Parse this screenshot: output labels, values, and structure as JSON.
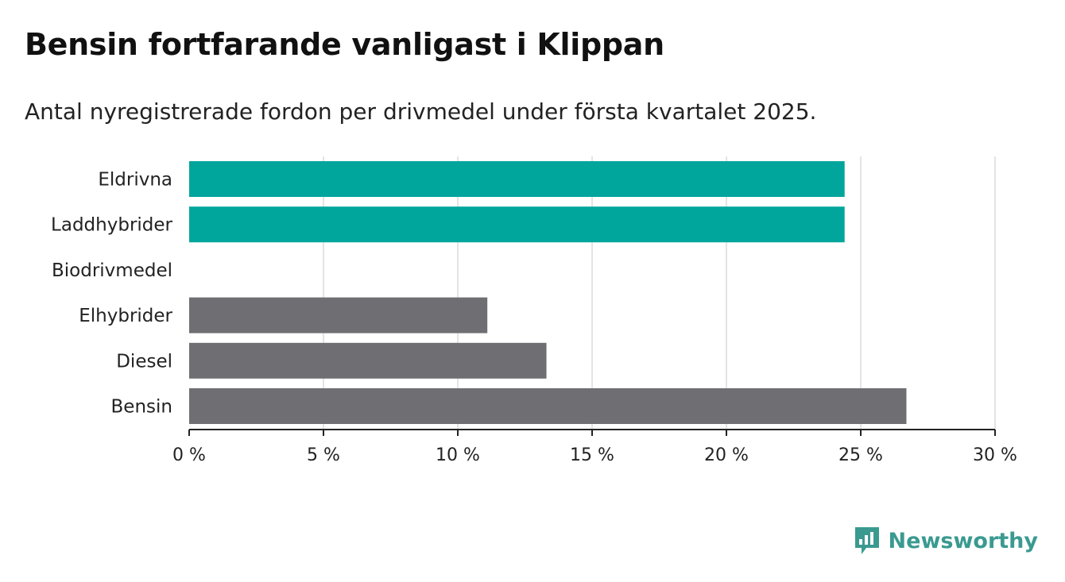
{
  "title": "Bensin fortfarande vanligast i Klippan",
  "subtitle": "Antal nyregistrerade fordon per drivmedel under första kvartalet 2025.",
  "brand": {
    "name": "Newsworthy",
    "icon": "bar-chart-speech-bubble-icon",
    "color": "#3a9a90"
  },
  "chart_data": {
    "type": "bar",
    "orientation": "horizontal",
    "categories": [
      "Eldrivna",
      "Laddhybrider",
      "Biodrivmedel",
      "Elhybrider",
      "Diesel",
      "Bensin"
    ],
    "values": [
      24.4,
      24.4,
      0,
      11.1,
      13.3,
      26.7
    ],
    "colors": [
      "#00a59b",
      "#00a59b",
      "#00a59b",
      "#6f6e73",
      "#6f6e73",
      "#6f6e73"
    ],
    "xlim": [
      0,
      30
    ],
    "xticks": [
      0,
      5,
      10,
      15,
      20,
      25,
      30
    ],
    "xtick_labels": [
      "0 %",
      "5 %",
      "10 %",
      "15 %",
      "20 %",
      "25 %",
      "30 %"
    ],
    "grid": "vertical"
  }
}
